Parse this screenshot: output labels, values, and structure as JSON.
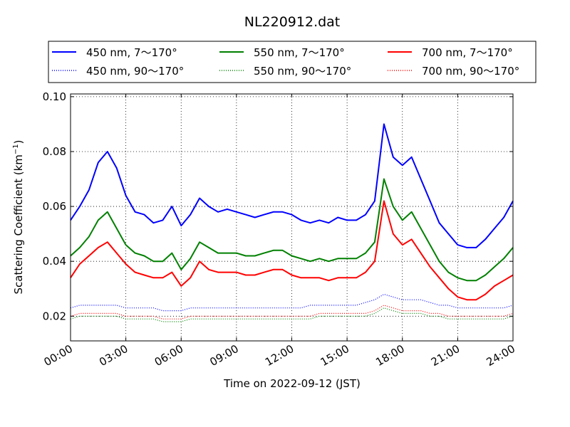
{
  "chart_data": {
    "type": "line",
    "title": "NL220912.dat",
    "xlabel": "Time on 2022-09-12 (JST)",
    "ylabel_main": "Scattering Coefficient (km",
    "ylabel_sup": "−1",
    "ylabel_close": ")",
    "xlim": [
      0,
      24
    ],
    "ylim": [
      0.011,
      0.101
    ],
    "grid": true,
    "legend_position": "top, above plot",
    "x_ticks": [
      {
        "value": 0,
        "label": "00:00"
      },
      {
        "value": 3,
        "label": "03:00"
      },
      {
        "value": 6,
        "label": "06:00"
      },
      {
        "value": 9,
        "label": "09:00"
      },
      {
        "value": 12,
        "label": "12:00"
      },
      {
        "value": 15,
        "label": "15:00"
      },
      {
        "value": 18,
        "label": "18:00"
      },
      {
        "value": 21,
        "label": "21:00"
      },
      {
        "value": 24,
        "label": "24:00"
      }
    ],
    "y_ticks": [
      {
        "value": 0.02,
        "label": "0.02"
      },
      {
        "value": 0.04,
        "label": "0.04"
      },
      {
        "value": 0.06,
        "label": "0.06"
      },
      {
        "value": 0.08,
        "label": "0.08"
      },
      {
        "value": 0.1,
        "label": "0.10"
      }
    ],
    "x": [
      0,
      0.5,
      1,
      1.5,
      2,
      2.5,
      3,
      3.5,
      4,
      4.5,
      5,
      5.5,
      6,
      6.5,
      7,
      7.5,
      8,
      8.5,
      9,
      9.5,
      10,
      10.5,
      11,
      11.5,
      12,
      12.5,
      13,
      13.5,
      14,
      14.5,
      15,
      15.5,
      16,
      16.5,
      17,
      17.5,
      18,
      18.5,
      19,
      19.5,
      20,
      20.5,
      21,
      21.5,
      22,
      22.5,
      23,
      23.5,
      24
    ],
    "series": [
      {
        "name": "450 nm, 7～170°",
        "color": "#0000ff",
        "style": "solid",
        "values": [
          0.055,
          0.06,
          0.066,
          0.076,
          0.08,
          0.074,
          0.064,
          0.058,
          0.057,
          0.054,
          0.055,
          0.06,
          0.053,
          0.057,
          0.063,
          0.06,
          0.058,
          0.059,
          0.058,
          0.057,
          0.056,
          0.057,
          0.058,
          0.058,
          0.057,
          0.055,
          0.054,
          0.055,
          0.054,
          0.056,
          0.055,
          0.055,
          0.057,
          0.062,
          0.09,
          0.078,
          0.075,
          0.078,
          0.07,
          0.062,
          0.054,
          0.05,
          0.046,
          0.045,
          0.045,
          0.048,
          0.052,
          0.056,
          0.062
        ]
      },
      {
        "name": "450 nm, 90～170°",
        "color": "#0000ff",
        "style": "dotted",
        "values": [
          0.023,
          0.024,
          0.024,
          0.024,
          0.024,
          0.024,
          0.023,
          0.023,
          0.023,
          0.023,
          0.022,
          0.022,
          0.022,
          0.023,
          0.023,
          0.023,
          0.023,
          0.023,
          0.023,
          0.023,
          0.023,
          0.023,
          0.023,
          0.023,
          0.023,
          0.023,
          0.024,
          0.024,
          0.024,
          0.024,
          0.024,
          0.024,
          0.025,
          0.026,
          0.028,
          0.027,
          0.026,
          0.026,
          0.026,
          0.025,
          0.024,
          0.024,
          0.023,
          0.023,
          0.023,
          0.023,
          0.023,
          0.023,
          0.024
        ]
      },
      {
        "name": "550 nm, 7～170°",
        "color": "#008000",
        "style": "solid",
        "values": [
          0.042,
          0.045,
          0.049,
          0.055,
          0.058,
          0.052,
          0.046,
          0.043,
          0.042,
          0.04,
          0.04,
          0.043,
          0.037,
          0.041,
          0.047,
          0.045,
          0.043,
          0.043,
          0.043,
          0.042,
          0.042,
          0.043,
          0.044,
          0.044,
          0.042,
          0.041,
          0.04,
          0.041,
          0.04,
          0.041,
          0.041,
          0.041,
          0.043,
          0.047,
          0.07,
          0.06,
          0.055,
          0.058,
          0.052,
          0.046,
          0.04,
          0.036,
          0.034,
          0.033,
          0.033,
          0.035,
          0.038,
          0.041,
          0.045
        ]
      },
      {
        "name": "550 nm, 90～170°",
        "color": "#008000",
        "style": "dotted",
        "values": [
          0.019,
          0.02,
          0.02,
          0.02,
          0.02,
          0.02,
          0.019,
          0.019,
          0.019,
          0.019,
          0.018,
          0.018,
          0.018,
          0.019,
          0.019,
          0.019,
          0.019,
          0.019,
          0.019,
          0.019,
          0.019,
          0.019,
          0.019,
          0.019,
          0.019,
          0.019,
          0.019,
          0.02,
          0.02,
          0.02,
          0.02,
          0.02,
          0.02,
          0.021,
          0.023,
          0.022,
          0.021,
          0.021,
          0.021,
          0.02,
          0.02,
          0.019,
          0.019,
          0.019,
          0.019,
          0.019,
          0.019,
          0.019,
          0.02
        ]
      },
      {
        "name": "700 nm, 7～170°",
        "color": "#ff0000",
        "style": "solid",
        "values": [
          0.034,
          0.039,
          0.042,
          0.045,
          0.047,
          0.043,
          0.039,
          0.036,
          0.035,
          0.034,
          0.034,
          0.036,
          0.031,
          0.034,
          0.04,
          0.037,
          0.036,
          0.036,
          0.036,
          0.035,
          0.035,
          0.036,
          0.037,
          0.037,
          0.035,
          0.034,
          0.034,
          0.034,
          0.033,
          0.034,
          0.034,
          0.034,
          0.036,
          0.04,
          0.062,
          0.05,
          0.046,
          0.048,
          0.043,
          0.038,
          0.034,
          0.03,
          0.027,
          0.026,
          0.026,
          0.028,
          0.031,
          0.033,
          0.035
        ]
      },
      {
        "name": "700 nm, 90～170°",
        "color": "#ff0000",
        "style": "dotted",
        "values": [
          0.02,
          0.021,
          0.021,
          0.021,
          0.021,
          0.021,
          0.02,
          0.02,
          0.02,
          0.02,
          0.019,
          0.019,
          0.019,
          0.02,
          0.02,
          0.02,
          0.02,
          0.02,
          0.02,
          0.02,
          0.02,
          0.02,
          0.02,
          0.02,
          0.02,
          0.02,
          0.02,
          0.021,
          0.021,
          0.021,
          0.021,
          0.021,
          0.021,
          0.022,
          0.024,
          0.023,
          0.022,
          0.022,
          0.022,
          0.021,
          0.021,
          0.02,
          0.02,
          0.02,
          0.02,
          0.02,
          0.02,
          0.02,
          0.021
        ]
      }
    ],
    "legend_order": [
      0,
      2,
      4,
      1,
      3,
      5
    ]
  }
}
